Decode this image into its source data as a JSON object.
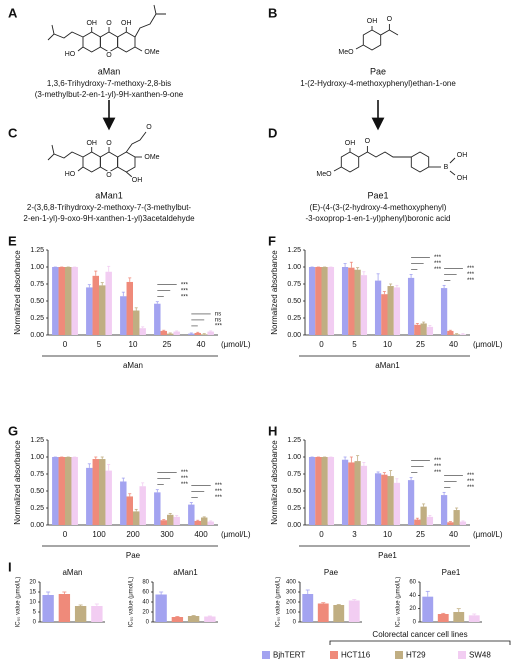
{
  "structures": [
    {
      "letter": "A",
      "atoms": [
        "OH",
        "O",
        "OH",
        "OMe",
        "HO",
        "O"
      ],
      "name": "aMan",
      "iupac": [
        "1,3,6-Trihydroxy-7-methoxy-2,8-bis",
        "(3-methylbut-2-en-1-yl)-9H-xanthen-9-one"
      ]
    },
    {
      "letter": "B",
      "atoms": [
        "OH",
        "O",
        "MeO"
      ],
      "name": "Pae",
      "iupac": [
        "1-(2-Hydroxy-4-methoxyphenyl)ethan-1-one"
      ]
    },
    {
      "letter": "C",
      "atoms": [
        "OH",
        "O",
        "O",
        "OMe",
        "HO",
        "O",
        "OH"
      ],
      "name": "aMan1",
      "iupac": [
        "2-(3,6,8-Trihydroxy-2-methoxy-7-(3-methylbut-",
        "2-en-1-yl)-9-oxo-9H-xanthen-1-yl)3acetaldehyde"
      ]
    },
    {
      "letter": "D",
      "atoms": [
        "OH",
        "O",
        "MeO",
        "B",
        "OH",
        "OH"
      ],
      "name": "Pae1",
      "iupac": [
        "(E)-(4-(3-(2-hydroxy-4-methoxyphenyl)",
        "-3-oxoprop-1-en-1-yl)phenyl)boronic acid"
      ]
    }
  ],
  "legend": {
    "group": "Colorectal cancer cell lines",
    "items": [
      {
        "name": "BjhTERT",
        "color": "#a3a3f0"
      },
      {
        "name": "HCT116",
        "color": "#ef8a7a"
      },
      {
        "name": "HT29",
        "color": "#c0ae82"
      },
      {
        "name": "SW48",
        "color": "#f2cdf2"
      }
    ]
  },
  "chart_data": [
    {
      "type": "bar",
      "letter": "E",
      "xlabel": "aMan",
      "unit": "(μmol/L)",
      "ylabel": "Normalized absorbance",
      "categories": [
        "0",
        "5",
        "10",
        "25",
        "40"
      ],
      "ylim": [
        0,
        1.25
      ],
      "yticks": [
        {
          "value": 0,
          "label": "0.00"
        },
        {
          "value": 0.25,
          "label": "0.25"
        },
        {
          "value": 0.5,
          "label": "0.50"
        },
        {
          "value": 0.75,
          "label": "0.75"
        },
        {
          "value": 1,
          "label": "1.00"
        },
        {
          "value": 1.25,
          "label": "1.25"
        }
      ],
      "series": [
        {
          "values": [
            1,
            0.7,
            0.57,
            0.46,
            0.02
          ],
          "errors": [
            0,
            0.04,
            0.06,
            0.03,
            0.01
          ]
        },
        {
          "values": [
            1,
            0.87,
            0.78,
            0.06,
            0.03
          ],
          "errors": [
            0,
            0.07,
            0.06,
            0.01,
            0.01
          ]
        },
        {
          "values": [
            1,
            0.73,
            0.36,
            0.02,
            0.01
          ],
          "errors": [
            0,
            0.04,
            0.04,
            0.01,
            0.01
          ]
        },
        {
          "values": [
            1,
            0.93,
            0.1,
            0.05,
            0.05
          ],
          "errors": [
            0,
            0.08,
            0.02,
            0.01,
            0.01
          ]
        }
      ],
      "annotations": [
        null,
        null,
        null,
        [
          "***",
          "***",
          "***"
        ],
        [
          "***",
          "ns",
          "ns"
        ]
      ]
    },
    {
      "type": "bar",
      "letter": "F",
      "xlabel": "aMan1",
      "unit": "(μmol/L)",
      "ylabel": "Normalized absorbance",
      "categories": [
        "0",
        "5",
        "10",
        "25",
        "40"
      ],
      "ylim": [
        0,
        1.25
      ],
      "yticks": [
        {
          "value": 0,
          "label": "0.00"
        },
        {
          "value": 0.25,
          "label": "0.25"
        },
        {
          "value": 0.5,
          "label": "0.50"
        },
        {
          "value": 0.75,
          "label": "0.75"
        },
        {
          "value": 1,
          "label": "1.00"
        },
        {
          "value": 1.25,
          "label": "1.25"
        }
      ],
      "series": [
        {
          "values": [
            1,
            1.0,
            0.8,
            0.84,
            0.69
          ],
          "errors": [
            0,
            0.05,
            0.1,
            0.05,
            0.04
          ]
        },
        {
          "values": [
            1,
            0.99,
            0.6,
            0.15,
            0.06
          ],
          "errors": [
            0,
            0.08,
            0.04,
            0.02,
            0.01
          ]
        },
        {
          "values": [
            1,
            0.96,
            0.72,
            0.17,
            0.01
          ],
          "errors": [
            0,
            0.03,
            0.03,
            0.02,
            0.01
          ]
        },
        {
          "values": [
            1,
            0.88,
            0.7,
            0.12,
            0.01
          ],
          "errors": [
            0,
            0.05,
            0.03,
            0.02,
            0.01
          ]
        }
      ],
      "annotations": [
        null,
        null,
        null,
        [
          "***",
          "***",
          "***"
        ],
        [
          "***",
          "***",
          "***"
        ]
      ]
    },
    {
      "type": "bar",
      "letter": "G",
      "xlabel": "Pae",
      "unit": "(μmol/L)",
      "ylabel": "Normalized absorbance",
      "categories": [
        "0",
        "100",
        "200",
        "300",
        "400"
      ],
      "ylim": [
        0,
        1.25
      ],
      "yticks": [
        {
          "value": 0,
          "label": "0.00"
        },
        {
          "value": 0.25,
          "label": "0.25"
        },
        {
          "value": 0.5,
          "label": "0.50"
        },
        {
          "value": 0.75,
          "label": "0.75"
        },
        {
          "value": 1,
          "label": "1.00"
        },
        {
          "value": 1.25,
          "label": "1.25"
        }
      ],
      "series": [
        {
          "values": [
            1,
            0.84,
            0.64,
            0.48,
            0.3
          ],
          "errors": [
            0,
            0.06,
            0.05,
            0.04,
            0.03
          ]
        },
        {
          "values": [
            1,
            0.97,
            0.42,
            0.07,
            0.06
          ],
          "errors": [
            0,
            0.03,
            0.04,
            0.01,
            0.01
          ]
        },
        {
          "values": [
            1,
            0.97,
            0.2,
            0.15,
            0.11
          ],
          "errors": [
            0,
            0.03,
            0.03,
            0.02,
            0.01
          ]
        },
        {
          "values": [
            1,
            0.8,
            0.57,
            0.12,
            0.05
          ],
          "errors": [
            0,
            0.09,
            0.05,
            0.02,
            0.01
          ]
        }
      ],
      "annotations": [
        null,
        null,
        null,
        [
          "***",
          "***",
          "***"
        ],
        [
          "***",
          "***",
          "***"
        ]
      ]
    },
    {
      "type": "bar",
      "letter": "H",
      "xlabel": "Pae1",
      "unit": "(μmol/L)",
      "ylabel": "Normalized absorbance",
      "categories": [
        "0",
        "3",
        "10",
        "25",
        "40"
      ],
      "ylim": [
        0,
        1.25
      ],
      "yticks": [
        {
          "value": 0,
          "label": "0.00"
        },
        {
          "value": 0.25,
          "label": "0.25"
        },
        {
          "value": 0.5,
          "label": "0.50"
        },
        {
          "value": 0.75,
          "label": "0.75"
        },
        {
          "value": 1,
          "label": "1.00"
        },
        {
          "value": 1.25,
          "label": "1.25"
        }
      ],
      "series": [
        {
          "values": [
            1,
            0.96,
            0.76,
            0.66,
            0.44
          ],
          "errors": [
            0,
            0.04,
            0.02,
            0.04,
            0.04
          ]
        },
        {
          "values": [
            1,
            0.92,
            0.74,
            0.08,
            0.04
          ],
          "errors": [
            0,
            0.08,
            0.03,
            0.02,
            0.01
          ]
        },
        {
          "values": [
            1,
            0.94,
            0.72,
            0.27,
            0.22
          ],
          "errors": [
            0,
            0.08,
            0.08,
            0.04,
            0.03
          ]
        },
        {
          "values": [
            1,
            0.87,
            0.62,
            0.12,
            0.05
          ],
          "errors": [
            0,
            0.05,
            0.06,
            0.02,
            0.01
          ]
        }
      ],
      "annotations": [
        null,
        null,
        null,
        [
          "***",
          "***",
          "***"
        ],
        [
          "***",
          "***",
          "***"
        ]
      ]
    },
    {
      "type": "bar",
      "letter": "I",
      "title": "aMan",
      "ylabel": "IC₅₀ value (μmol/L)",
      "ylim": [
        0,
        20
      ],
      "yticks": [
        0,
        5,
        10,
        15,
        20
      ],
      "values": [
        13.5,
        14,
        8,
        8
      ],
      "errors": [
        1.5,
        1,
        0.5,
        1
      ]
    },
    {
      "type": "bar",
      "title": "aMan1",
      "ylabel": "IC₅₀ value (μmol/L)",
      "ylim": [
        0,
        80
      ],
      "yticks": [
        0,
        20,
        40,
        60,
        80
      ],
      "values": [
        55,
        10,
        12,
        11
      ],
      "errors": [
        5,
        1,
        1,
        1
      ]
    },
    {
      "type": "bar",
      "title": "Pae",
      "ylabel": "IC₅₀ value (μmol/L)",
      "ylim": [
        0,
        400
      ],
      "yticks": [
        0,
        100,
        200,
        300,
        400
      ],
      "values": [
        280,
        185,
        170,
        215
      ],
      "errors": [
        40,
        8,
        5,
        10
      ]
    },
    {
      "type": "bar",
      "title": "Pae1",
      "ylabel": "IC₅₀ value (μmol/L)",
      "ylim": [
        0,
        60
      ],
      "yticks": [
        0,
        20,
        40,
        60
      ],
      "values": [
        38,
        12,
        15,
        10
      ],
      "errors": [
        8,
        1,
        5,
        2
      ]
    }
  ]
}
